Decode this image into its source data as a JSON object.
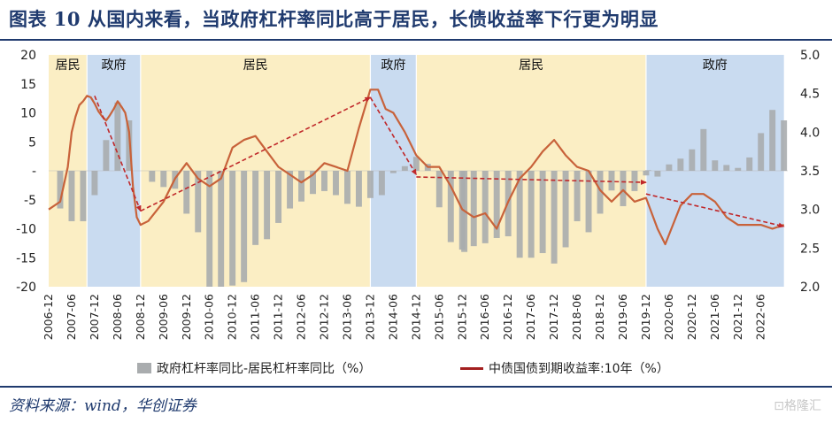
{
  "header": {
    "title": "图表 10   从国内来看，当政府杠杆率同比高于居民，长债收益率下行更为明显"
  },
  "footer": {
    "source": "资料来源：wind，华创证券",
    "watermark": "⊡格隆汇"
  },
  "colors": {
    "bar": "#a9acae",
    "line": "#c8623a",
    "line_legend": "#a31f1f",
    "arrow": "#c0282a",
    "band_household": "#fbeec4",
    "band_government": "#c9dbf0",
    "title": "#1f3a6e"
  },
  "chart_data": {
    "type": "bar+line",
    "title": "",
    "ylim_left": [
      -20,
      20
    ],
    "yticks_left": [
      "20",
      "15",
      "10",
      "5",
      "-",
      "-5",
      "-10",
      "-15",
      "-20"
    ],
    "ylim_right": [
      2.0,
      5.0
    ],
    "yticks_right": [
      "5.0",
      "4.5",
      "4.0",
      "3.5",
      "3.0",
      "2.5",
      "2.0"
    ],
    "x_tick_labels": [
      "2006-12",
      "2007-06",
      "2007-12",
      "2008-06",
      "2008-12",
      "2009-06",
      "2009-12",
      "2010-06",
      "2010-12",
      "2011-06",
      "2011-12",
      "2012-06",
      "2012-12",
      "2013-06",
      "2013-12",
      "2014-06",
      "2014-12",
      "2015-06",
      "2015-12",
      "2016-06",
      "2016-12",
      "2017-06",
      "2017-12",
      "2018-06",
      "2018-12",
      "2019-06",
      "2019-12",
      "2020-06",
      "2020-12",
      "2021-06",
      "2021-12",
      "2022-06"
    ],
    "regimes": [
      {
        "label": "居民",
        "type": "household",
        "start": "2006-12",
        "end": "2007-10"
      },
      {
        "label": "政府",
        "type": "government",
        "start": "2007-10",
        "end": "2008-12"
      },
      {
        "label": "居民",
        "type": "household",
        "start": "2008-12",
        "end": "2013-12"
      },
      {
        "label": "政府",
        "type": "government",
        "start": "2013-12",
        "end": "2014-12"
      },
      {
        "label": "居民",
        "type": "household",
        "start": "2014-12",
        "end": "2019-12"
      },
      {
        "label": "政府",
        "type": "government",
        "start": "2019-12",
        "end": "2022-12"
      }
    ],
    "series": [
      {
        "name": "政府杠杆率同比-居民杠杆率同比（%）",
        "type": "bar",
        "axis": "left",
        "points": [
          [
            "2007-03",
            -6.5
          ],
          [
            "2007-06",
            -8.7
          ],
          [
            "2007-09",
            -8.7
          ],
          [
            "2007-12",
            -4.2
          ],
          [
            "2008-03",
            5.3
          ],
          [
            "2008-06",
            11.8
          ],
          [
            "2008-09",
            8.7
          ],
          [
            "2009-03",
            -1.9
          ],
          [
            "2009-06",
            -2.8
          ],
          [
            "2009-09",
            -3.1
          ],
          [
            "2009-12",
            -7.4
          ],
          [
            "2010-03",
            -10.6
          ],
          [
            "2010-06",
            -20.0
          ],
          [
            "2010-09",
            -20.0
          ],
          [
            "2010-12",
            -19.8
          ],
          [
            "2011-03",
            -19.2
          ],
          [
            "2011-06",
            -12.8
          ],
          [
            "2011-09",
            -11.8
          ],
          [
            "2011-12",
            -9.0
          ],
          [
            "2012-03",
            -6.5
          ],
          [
            "2012-06",
            -5.3
          ],
          [
            "2012-09",
            -4.0
          ],
          [
            "2012-12",
            -3.5
          ],
          [
            "2013-03",
            -4.2
          ],
          [
            "2013-06",
            -5.7
          ],
          [
            "2013-09",
            -6.2
          ],
          [
            "2013-12",
            -4.7
          ],
          [
            "2014-03",
            -4.2
          ],
          [
            "2014-06",
            -0.4
          ],
          [
            "2014-09",
            0.8
          ],
          [
            "2014-12",
            2.4
          ],
          [
            "2015-03",
            1.2
          ],
          [
            "2015-06",
            -6.3
          ],
          [
            "2015-09",
            -12.3
          ],
          [
            "2015-12",
            -13.6
          ],
          [
            "2015-12b",
            -14.0
          ],
          [
            "2016-03",
            -13.0
          ],
          [
            "2016-06",
            -12.5
          ],
          [
            "2016-09",
            -11.6
          ],
          [
            "2016-12",
            -11.3
          ],
          [
            "2017-03",
            -15.0
          ],
          [
            "2017-06",
            -15.0
          ],
          [
            "2017-09",
            -14.2
          ],
          [
            "2017-12",
            -16.0
          ],
          [
            "2018-03",
            -13.2
          ],
          [
            "2018-06",
            -8.7
          ],
          [
            "2018-09",
            -10.6
          ],
          [
            "2018-12",
            -7.4
          ],
          [
            "2019-03",
            -3.4
          ],
          [
            "2019-06",
            -6.1
          ],
          [
            "2019-09",
            -3.5
          ],
          [
            "2019-12",
            -0.8
          ],
          [
            "2019-12b",
            0.1
          ],
          [
            "2020-03",
            -1.0
          ],
          [
            "2020-06",
            1.1
          ],
          [
            "2020-09",
            2.1
          ],
          [
            "2020-12",
            3.7
          ],
          [
            "2021-03",
            7.2
          ],
          [
            "2021-06",
            1.8
          ],
          [
            "2021-09",
            1.0
          ],
          [
            "2021-12",
            0.5
          ],
          [
            "2022-03",
            2.3
          ],
          [
            "2022-06",
            6.5
          ],
          [
            "2022-09",
            10.5
          ],
          [
            "2022-12",
            8.7
          ]
        ]
      },
      {
        "name": "中债国债到期收益率:10年（%）",
        "type": "line",
        "axis": "right",
        "points": [
          [
            "2006-12",
            3.0
          ],
          [
            "2007-03",
            3.1
          ],
          [
            "2007-05",
            3.55
          ],
          [
            "2007-06",
            4.0
          ],
          [
            "2007-07",
            4.2
          ],
          [
            "2007-08",
            4.35
          ],
          [
            "2007-09",
            4.4
          ],
          [
            "2007-10",
            4.47
          ],
          [
            "2007-11",
            4.45
          ],
          [
            "2007-12",
            4.37
          ],
          [
            "2008-01",
            4.27
          ],
          [
            "2008-02",
            4.2
          ],
          [
            "2008-03",
            4.15
          ],
          [
            "2008-04",
            4.22
          ],
          [
            "2008-05",
            4.3
          ],
          [
            "2008-06",
            4.4
          ],
          [
            "2008-07",
            4.33
          ],
          [
            "2008-08",
            4.25
          ],
          [
            "2008-09",
            4.0
          ],
          [
            "2008-10",
            3.3
          ],
          [
            "2008-11",
            2.9
          ],
          [
            "2008-12",
            2.8
          ],
          [
            "2009-02",
            2.85
          ],
          [
            "2009-06",
            3.1
          ],
          [
            "2009-09",
            3.4
          ],
          [
            "2009-12",
            3.6
          ],
          [
            "2010-03",
            3.4
          ],
          [
            "2010-06",
            3.3
          ],
          [
            "2010-09",
            3.4
          ],
          [
            "2010-12",
            3.8
          ],
          [
            "2011-03",
            3.9
          ],
          [
            "2011-06",
            3.95
          ],
          [
            "2011-09",
            3.75
          ],
          [
            "2011-12",
            3.55
          ],
          [
            "2012-03",
            3.45
          ],
          [
            "2012-06",
            3.35
          ],
          [
            "2012-09",
            3.45
          ],
          [
            "2012-12",
            3.6
          ],
          [
            "2013-03",
            3.55
          ],
          [
            "2013-06",
            3.5
          ],
          [
            "2013-09",
            4.05
          ],
          [
            "2013-12",
            4.55
          ],
          [
            "2014-02",
            4.55
          ],
          [
            "2014-04",
            4.3
          ],
          [
            "2014-06",
            4.25
          ],
          [
            "2014-09",
            4.0
          ],
          [
            "2014-12",
            3.7
          ],
          [
            "2015-03",
            3.55
          ],
          [
            "2015-06",
            3.55
          ],
          [
            "2015-09",
            3.3
          ],
          [
            "2015-12",
            3.0
          ],
          [
            "2016-03",
            2.9
          ],
          [
            "2016-06",
            2.95
          ],
          [
            "2016-09",
            2.75
          ],
          [
            "2016-12",
            3.1
          ],
          [
            "2017-03",
            3.4
          ],
          [
            "2017-06",
            3.55
          ],
          [
            "2017-09",
            3.75
          ],
          [
            "2017-12",
            3.9
          ],
          [
            "2018-03",
            3.7
          ],
          [
            "2018-06",
            3.55
          ],
          [
            "2018-09",
            3.5
          ],
          [
            "2018-12",
            3.25
          ],
          [
            "2019-03",
            3.1
          ],
          [
            "2019-06",
            3.25
          ],
          [
            "2019-09",
            3.1
          ],
          [
            "2019-12",
            3.15
          ],
          [
            "2020-03",
            2.75
          ],
          [
            "2020-05",
            2.55
          ],
          [
            "2020-09",
            3.05
          ],
          [
            "2020-12",
            3.2
          ],
          [
            "2021-03",
            3.2
          ],
          [
            "2021-06",
            3.1
          ],
          [
            "2021-09",
            2.9
          ],
          [
            "2021-12",
            2.8
          ],
          [
            "2022-03",
            2.8
          ],
          [
            "2022-06",
            2.8
          ],
          [
            "2022-09",
            2.75
          ],
          [
            "2022-12",
            2.8
          ]
        ]
      }
    ],
    "trend_arrows": [
      {
        "from": [
          "2007-12",
          4.47
        ],
        "to": [
          "2008-12",
          2.98
        ]
      },
      {
        "from": [
          "2008-12",
          2.98
        ],
        "to": [
          "2013-12",
          4.45
        ]
      },
      {
        "from": [
          "2013-12",
          4.45
        ],
        "to": [
          "2014-12",
          3.45
        ]
      },
      {
        "from": [
          "2014-12",
          3.42
        ],
        "to": [
          "2019-12",
          3.35
        ]
      },
      {
        "from": [
          "2019-12",
          3.2
        ],
        "to": [
          "2022-12",
          2.78
        ]
      }
    ]
  }
}
